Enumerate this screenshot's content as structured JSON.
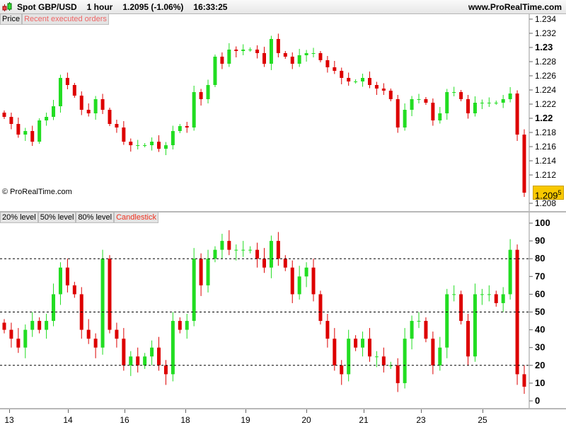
{
  "header": {
    "instrument": "Spot GBP/USD",
    "timeframe": "1 hour",
    "last_price_change": "1.2095 (-1.06%)",
    "time": "16:33:25",
    "site": "www.ProRealTime.com"
  },
  "price_panel": {
    "tabs": [
      "Price",
      "Recent executed orders"
    ],
    "copyright": "© ProRealTime.com",
    "current_price_main": "1.209",
    "current_price_sup": "5",
    "y_ticks": [
      "1.234",
      "1.232",
      "1.23",
      "1.228",
      "1.226",
      "1.224",
      "1.222",
      "1.22",
      "1.218",
      "1.216",
      "1.214",
      "1.212",
      "1.208"
    ],
    "y_ticks_bold": [
      "1.23",
      "1.22"
    ]
  },
  "indicator_panel": {
    "tabs": [
      "20% level",
      "50% level",
      "80% level",
      "Candlestick"
    ],
    "y_ticks": [
      "100",
      "90",
      "80",
      "70",
      "60",
      "50",
      "40",
      "30",
      "20",
      "10",
      "0"
    ],
    "levels": [
      20,
      50,
      80
    ]
  },
  "x_axis": {
    "ticks": [
      "13",
      "14",
      "16",
      "18",
      "19",
      "20",
      "21",
      "23",
      "25"
    ]
  },
  "colors": {
    "up": "#22dd22",
    "down": "#dd0000",
    "price_label": "#f8c800"
  },
  "chart_data": [
    {
      "type": "candlestick",
      "ylim": [
        1.2075,
        1.2347
      ],
      "closes": [
        1.2202,
        1.2192,
        1.2177,
        1.2182,
        1.2167,
        1.2197,
        1.2202,
        1.2217,
        1.2257,
        1.2247,
        1.2232,
        1.2212,
        1.2207,
        1.2227,
        1.2212,
        1.2192,
        1.2187,
        1.2167,
        1.2162,
        1.2162,
        1.2162,
        1.2167,
        1.2157,
        1.2162,
        1.2182,
        1.2189,
        1.2187,
        1.2237,
        1.2227,
        1.2247,
        1.2287,
        1.2277,
        1.2297,
        1.2295,
        1.2297,
        1.2297,
        1.2292,
        1.2277,
        1.2312,
        1.2292,
        1.2287,
        1.2277,
        1.2289,
        1.2292,
        1.2292,
        1.2282,
        1.2272,
        1.2267,
        1.2257,
        1.2252,
        1.2252,
        1.2257,
        1.2247,
        1.2242,
        1.2239,
        1.2227,
        1.2187,
        1.2212,
        1.2227,
        1.2227,
        1.2222,
        1.2197,
        1.2207,
        1.2237,
        1.2237,
        1.2227,
        1.2207,
        1.2222,
        1.2222,
        1.2222,
        1.2222,
        1.2227,
        1.2235,
        1.2177,
        1.2095
      ]
    },
    {
      "type": "candlestick",
      "ylim": [
        0,
        100
      ],
      "closes": [
        40,
        35,
        30,
        40,
        45,
        40,
        45,
        60,
        75,
        65,
        60,
        40,
        35,
        30,
        80,
        40,
        35,
        20,
        25,
        20,
        25,
        30,
        20,
        15,
        45,
        40,
        45,
        80,
        65,
        80,
        85,
        90,
        85,
        85,
        85,
        85,
        80,
        75,
        90,
        80,
        75,
        60,
        70,
        75,
        60,
        45,
        35,
        20,
        15,
        35,
        30,
        35,
        25,
        25,
        20,
        20,
        10,
        35,
        45,
        45,
        35,
        20,
        30,
        60,
        60,
        45,
        25,
        60,
        60,
        60,
        55,
        60,
        85,
        15,
        8
      ]
    }
  ]
}
